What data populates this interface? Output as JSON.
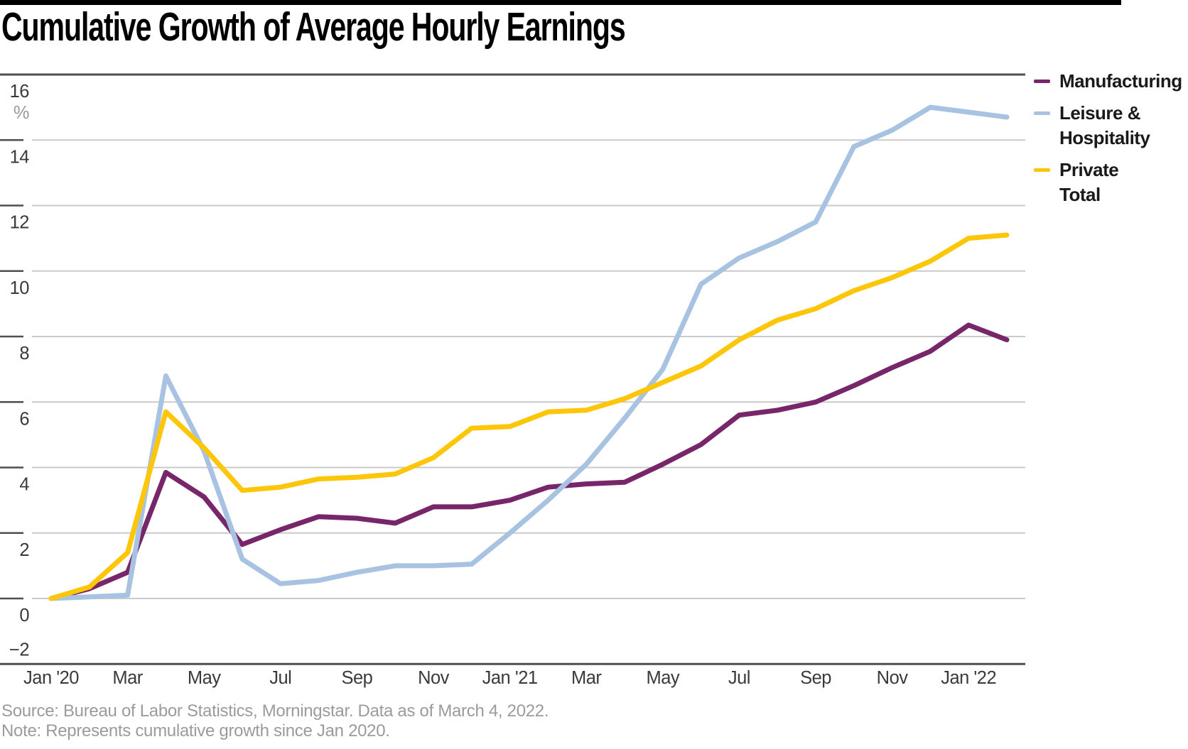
{
  "header": {
    "title": "Cumulative Growth of Average Hourly Earnings"
  },
  "footer": {
    "source": "Source: Bureau of Labor Statistics, Morningstar. Data as of March 4, 2022.",
    "note": "Note: Represents cumulative growth since Jan 2020."
  },
  "colors": {
    "manufacturing": "#77266A",
    "leisure_hospitality": "#A8C2E2",
    "private_total": "#FDC608",
    "grid_line": "#CACACA",
    "axis_dark": "#4F4F4F",
    "tick_text": "#3A3A3A",
    "muted_text": "#9B9B9B",
    "top_bar": "#000000"
  },
  "chart_data": {
    "type": "line",
    "title": "Cumulative Growth of Average Hourly Earnings",
    "xlabel": "",
    "ylabel": "%",
    "ylim": [
      -2,
      16
    ],
    "grid": true,
    "legend_position": "right",
    "y_axis": {
      "unit_label": "%",
      "ticks": [
        16,
        14,
        12,
        10,
        8,
        6,
        4,
        2,
        0,
        -2
      ]
    },
    "x_axis": {
      "tick_labels": [
        "Jan '20",
        "Mar",
        "May",
        "Jul",
        "Sep",
        "Nov",
        "Jan '21",
        "Mar",
        "May",
        "Jul",
        "Sep",
        "Nov",
        "Jan '22"
      ]
    },
    "x_points": [
      "2020-01",
      "2020-02",
      "2020-03",
      "2020-04",
      "2020-05",
      "2020-06",
      "2020-07",
      "2020-08",
      "2020-09",
      "2020-10",
      "2020-11",
      "2020-12",
      "2021-01",
      "2021-02",
      "2021-03",
      "2021-04",
      "2021-05",
      "2021-06",
      "2021-07",
      "2021-08",
      "2021-09",
      "2021-10",
      "2021-11",
      "2021-12",
      "2022-01",
      "2022-02"
    ],
    "series": [
      {
        "name": "Manufacturing",
        "legend_lines": [
          "Manufacturing"
        ],
        "color": "#77266A",
        "values": [
          0,
          0.3,
          0.8,
          3.85,
          3.1,
          1.65,
          2.1,
          2.5,
          2.45,
          2.3,
          2.8,
          2.8,
          3.0,
          3.4,
          3.5,
          3.55,
          4.1,
          4.7,
          5.6,
          5.75,
          6.0,
          6.5,
          7.05,
          7.55,
          8.35,
          7.9
        ]
      },
      {
        "name": "Leisure & Hospitality",
        "legend_lines": [
          "Leisure &",
          "Hospitality"
        ],
        "color": "#A8C2E2",
        "values": [
          0,
          0.05,
          0.1,
          6.8,
          4.5,
          1.2,
          0.45,
          0.55,
          0.8,
          1.0,
          1.0,
          1.05,
          2.0,
          3.0,
          4.1,
          5.5,
          7.0,
          9.6,
          10.4,
          10.9,
          11.5,
          13.8,
          14.3,
          15.0,
          14.85,
          14.7
        ]
      },
      {
        "name": "Private Total",
        "legend_lines": [
          "Private",
          "Total"
        ],
        "color": "#FDC608",
        "values": [
          0,
          0.35,
          1.4,
          5.7,
          4.6,
          3.3,
          3.4,
          3.65,
          3.7,
          3.8,
          4.3,
          5.2,
          5.25,
          5.7,
          5.75,
          6.1,
          6.6,
          7.1,
          7.9,
          8.5,
          8.85,
          9.4,
          9.8,
          10.3,
          11.0,
          11.1
        ]
      }
    ]
  }
}
